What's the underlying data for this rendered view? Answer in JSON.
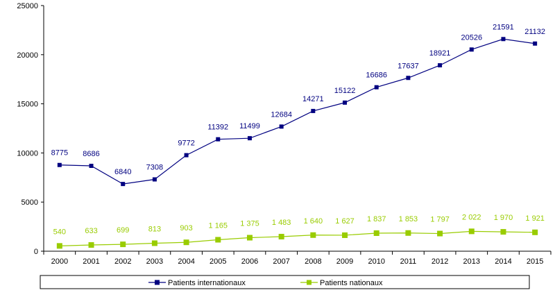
{
  "chart_data": {
    "type": "line",
    "categories": [
      "2000",
      "2001",
      "2002",
      "2003",
      "2004",
      "2005",
      "2006",
      "2007",
      "2008",
      "2009",
      "2010",
      "2011",
      "2012",
      "2013",
      "2014",
      "2015"
    ],
    "series": [
      {
        "name": "Patients internationaux",
        "color": "#000080",
        "values": [
          8775,
          8686,
          6840,
          7308,
          9772,
          11392,
          11499,
          12684,
          14271,
          15122,
          16686,
          17637,
          18921,
          20526,
          21591,
          21132
        ],
        "labels": [
          "8775",
          "8686",
          "6840",
          "7308",
          "9772",
          "11392",
          "11499",
          "12684",
          "14271",
          "15122",
          "16686",
          "17637",
          "18921",
          "20526",
          "21591",
          "21132"
        ]
      },
      {
        "name": "Patients nationaux",
        "color": "#99cc00",
        "values": [
          540,
          633,
          699,
          813,
          903,
          1165,
          1375,
          1483,
          1640,
          1627,
          1837,
          1853,
          1797,
          2022,
          1970,
          1921
        ],
        "labels": [
          "540",
          "633",
          "699",
          "813",
          "903",
          "1 165",
          "1 375",
          "1 483",
          "1 640",
          "1 627",
          "1 837",
          "1 853",
          "1 797",
          "2 022",
          "1 970",
          "1 921"
        ]
      }
    ],
    "yticks": [
      "0",
      "5000",
      "10000",
      "15000",
      "20000",
      "25000"
    ],
    "ylim": [
      0,
      25000
    ],
    "grid": false,
    "legend_position": "bottom"
  }
}
